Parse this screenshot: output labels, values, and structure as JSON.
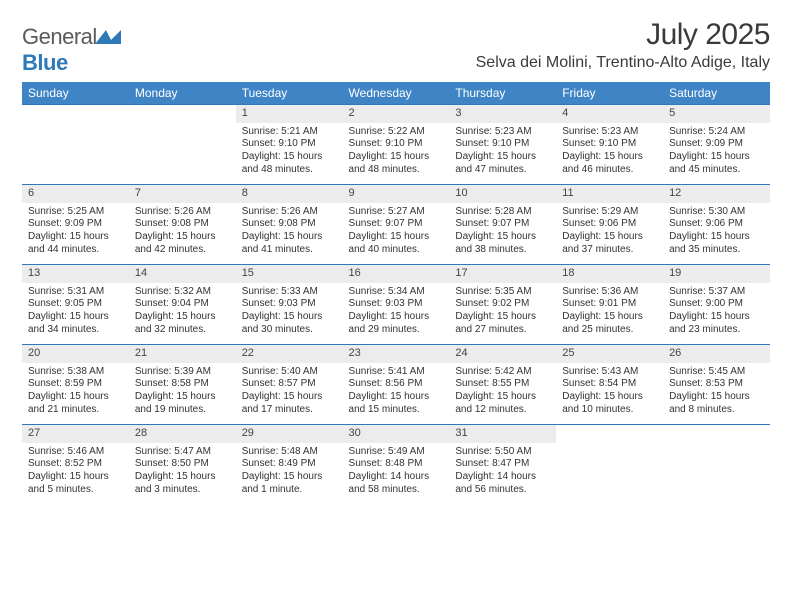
{
  "logo": {
    "word1": "General",
    "word2": "Blue",
    "mark_color": "#2f79b9",
    "text_gray": "#5a5a5a"
  },
  "title": "July 2025",
  "location": "Selva dei Molini, Trentino-Alto Adige, Italy",
  "colors": {
    "header_bg": "#3f85c6",
    "header_text": "#ffffff",
    "day_bg": "#ececec",
    "rule": "#2f79b9",
    "body_text": "#333333"
  },
  "fonts": {
    "title_size": 30,
    "location_size": 16,
    "weekday_size": 12,
    "daynum_size": 11,
    "body_size": 10
  },
  "weekdays": [
    "Sunday",
    "Monday",
    "Tuesday",
    "Wednesday",
    "Thursday",
    "Friday",
    "Saturday"
  ],
  "weeks": [
    {
      "days": [
        {
          "n": "",
          "lines": [
            "",
            "",
            "",
            ""
          ]
        },
        {
          "n": "",
          "lines": [
            "",
            "",
            "",
            ""
          ]
        },
        {
          "n": "1",
          "lines": [
            "Sunrise: 5:21 AM",
            "Sunset: 9:10 PM",
            "Daylight: 15 hours",
            "and 48 minutes."
          ]
        },
        {
          "n": "2",
          "lines": [
            "Sunrise: 5:22 AM",
            "Sunset: 9:10 PM",
            "Daylight: 15 hours",
            "and 48 minutes."
          ]
        },
        {
          "n": "3",
          "lines": [
            "Sunrise: 5:23 AM",
            "Sunset: 9:10 PM",
            "Daylight: 15 hours",
            "and 47 minutes."
          ]
        },
        {
          "n": "4",
          "lines": [
            "Sunrise: 5:23 AM",
            "Sunset: 9:10 PM",
            "Daylight: 15 hours",
            "and 46 minutes."
          ]
        },
        {
          "n": "5",
          "lines": [
            "Sunrise: 5:24 AM",
            "Sunset: 9:09 PM",
            "Daylight: 15 hours",
            "and 45 minutes."
          ]
        }
      ]
    },
    {
      "days": [
        {
          "n": "6",
          "lines": [
            "Sunrise: 5:25 AM",
            "Sunset: 9:09 PM",
            "Daylight: 15 hours",
            "and 44 minutes."
          ]
        },
        {
          "n": "7",
          "lines": [
            "Sunrise: 5:26 AM",
            "Sunset: 9:08 PM",
            "Daylight: 15 hours",
            "and 42 minutes."
          ]
        },
        {
          "n": "8",
          "lines": [
            "Sunrise: 5:26 AM",
            "Sunset: 9:08 PM",
            "Daylight: 15 hours",
            "and 41 minutes."
          ]
        },
        {
          "n": "9",
          "lines": [
            "Sunrise: 5:27 AM",
            "Sunset: 9:07 PM",
            "Daylight: 15 hours",
            "and 40 minutes."
          ]
        },
        {
          "n": "10",
          "lines": [
            "Sunrise: 5:28 AM",
            "Sunset: 9:07 PM",
            "Daylight: 15 hours",
            "and 38 minutes."
          ]
        },
        {
          "n": "11",
          "lines": [
            "Sunrise: 5:29 AM",
            "Sunset: 9:06 PM",
            "Daylight: 15 hours",
            "and 37 minutes."
          ]
        },
        {
          "n": "12",
          "lines": [
            "Sunrise: 5:30 AM",
            "Sunset: 9:06 PM",
            "Daylight: 15 hours",
            "and 35 minutes."
          ]
        }
      ]
    },
    {
      "days": [
        {
          "n": "13",
          "lines": [
            "Sunrise: 5:31 AM",
            "Sunset: 9:05 PM",
            "Daylight: 15 hours",
            "and 34 minutes."
          ]
        },
        {
          "n": "14",
          "lines": [
            "Sunrise: 5:32 AM",
            "Sunset: 9:04 PM",
            "Daylight: 15 hours",
            "and 32 minutes."
          ]
        },
        {
          "n": "15",
          "lines": [
            "Sunrise: 5:33 AM",
            "Sunset: 9:03 PM",
            "Daylight: 15 hours",
            "and 30 minutes."
          ]
        },
        {
          "n": "16",
          "lines": [
            "Sunrise: 5:34 AM",
            "Sunset: 9:03 PM",
            "Daylight: 15 hours",
            "and 29 minutes."
          ]
        },
        {
          "n": "17",
          "lines": [
            "Sunrise: 5:35 AM",
            "Sunset: 9:02 PM",
            "Daylight: 15 hours",
            "and 27 minutes."
          ]
        },
        {
          "n": "18",
          "lines": [
            "Sunrise: 5:36 AM",
            "Sunset: 9:01 PM",
            "Daylight: 15 hours",
            "and 25 minutes."
          ]
        },
        {
          "n": "19",
          "lines": [
            "Sunrise: 5:37 AM",
            "Sunset: 9:00 PM",
            "Daylight: 15 hours",
            "and 23 minutes."
          ]
        }
      ]
    },
    {
      "days": [
        {
          "n": "20",
          "lines": [
            "Sunrise: 5:38 AM",
            "Sunset: 8:59 PM",
            "Daylight: 15 hours",
            "and 21 minutes."
          ]
        },
        {
          "n": "21",
          "lines": [
            "Sunrise: 5:39 AM",
            "Sunset: 8:58 PM",
            "Daylight: 15 hours",
            "and 19 minutes."
          ]
        },
        {
          "n": "22",
          "lines": [
            "Sunrise: 5:40 AM",
            "Sunset: 8:57 PM",
            "Daylight: 15 hours",
            "and 17 minutes."
          ]
        },
        {
          "n": "23",
          "lines": [
            "Sunrise: 5:41 AM",
            "Sunset: 8:56 PM",
            "Daylight: 15 hours",
            "and 15 minutes."
          ]
        },
        {
          "n": "24",
          "lines": [
            "Sunrise: 5:42 AM",
            "Sunset: 8:55 PM",
            "Daylight: 15 hours",
            "and 12 minutes."
          ]
        },
        {
          "n": "25",
          "lines": [
            "Sunrise: 5:43 AM",
            "Sunset: 8:54 PM",
            "Daylight: 15 hours",
            "and 10 minutes."
          ]
        },
        {
          "n": "26",
          "lines": [
            "Sunrise: 5:45 AM",
            "Sunset: 8:53 PM",
            "Daylight: 15 hours",
            "and 8 minutes."
          ]
        }
      ]
    },
    {
      "days": [
        {
          "n": "27",
          "lines": [
            "Sunrise: 5:46 AM",
            "Sunset: 8:52 PM",
            "Daylight: 15 hours",
            "and 5 minutes."
          ]
        },
        {
          "n": "28",
          "lines": [
            "Sunrise: 5:47 AM",
            "Sunset: 8:50 PM",
            "Daylight: 15 hours",
            "and 3 minutes."
          ]
        },
        {
          "n": "29",
          "lines": [
            "Sunrise: 5:48 AM",
            "Sunset: 8:49 PM",
            "Daylight: 15 hours",
            "and 1 minute."
          ]
        },
        {
          "n": "30",
          "lines": [
            "Sunrise: 5:49 AM",
            "Sunset: 8:48 PM",
            "Daylight: 14 hours",
            "and 58 minutes."
          ]
        },
        {
          "n": "31",
          "lines": [
            "Sunrise: 5:50 AM",
            "Sunset: 8:47 PM",
            "Daylight: 14 hours",
            "and 56 minutes."
          ]
        },
        {
          "n": "",
          "lines": [
            "",
            "",
            "",
            ""
          ]
        },
        {
          "n": "",
          "lines": [
            "",
            "",
            "",
            ""
          ]
        }
      ]
    }
  ]
}
